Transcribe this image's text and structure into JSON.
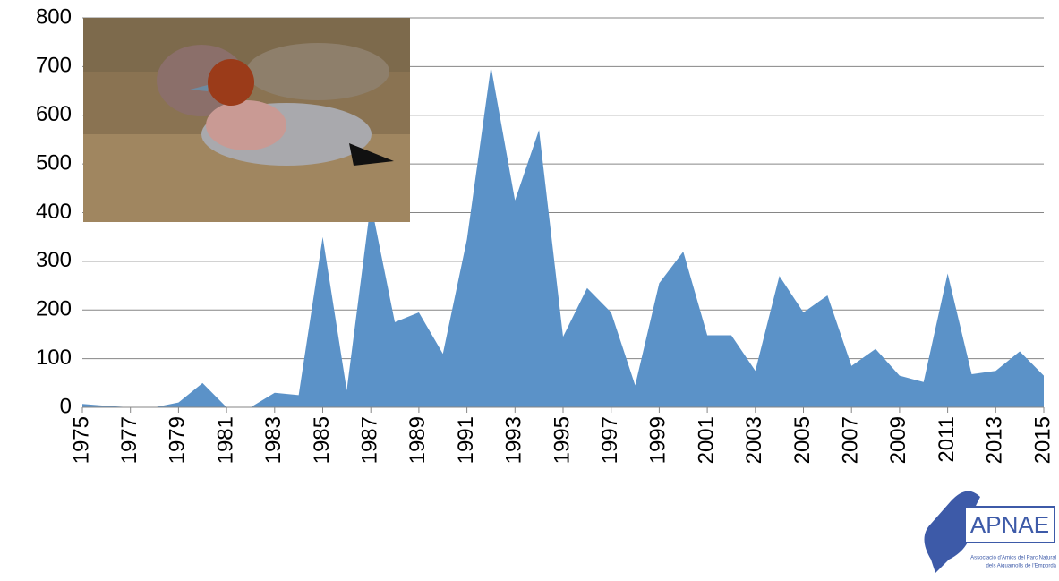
{
  "chart_data": {
    "type": "area",
    "color": "#5b92c8",
    "x": [
      1975,
      1976,
      1977,
      1978,
      1979,
      1980,
      1981,
      1982,
      1983,
      1984,
      1985,
      1986,
      1987,
      1988,
      1989,
      1990,
      1991,
      1992,
      1993,
      1994,
      1995,
      1996,
      1997,
      1998,
      1999,
      2000,
      2001,
      2002,
      2003,
      2004,
      2005,
      2006,
      2007,
      2008,
      2009,
      2010,
      2011,
      2012,
      2013,
      2014,
      2015
    ],
    "values": [
      7,
      3,
      0,
      0,
      10,
      50,
      0,
      0,
      30,
      25,
      350,
      35,
      420,
      175,
      195,
      110,
      345,
      700,
      425,
      570,
      145,
      245,
      195,
      45,
      255,
      320,
      148,
      148,
      75,
      270,
      195,
      230,
      85,
      120,
      65,
      52,
      275,
      68,
      75,
      115,
      65
    ],
    "xlim": [
      1975,
      2015
    ],
    "xticks": [
      1975,
      1977,
      1979,
      1981,
      1983,
      1985,
      1987,
      1989,
      1991,
      1993,
      1995,
      1997,
      1999,
      2001,
      2003,
      2005,
      2007,
      2009,
      2011,
      2013,
      2015
    ],
    "ylim": [
      0,
      800
    ],
    "yticks": [
      0,
      100,
      200,
      300,
      400,
      500,
      600,
      700,
      800
    ],
    "grid": true
  },
  "logo": {
    "text": "APNAE",
    "subtitle": [
      "Associació d'Amics del Parc Natural",
      "dels Aiguamolls de l'Empordà"
    ]
  }
}
